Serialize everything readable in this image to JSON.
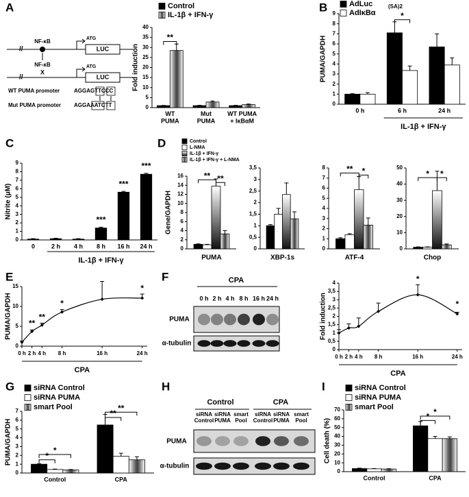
{
  "panel_labels": [
    "A",
    "B",
    "C",
    "D",
    "E",
    "F",
    "G",
    "H",
    "I"
  ],
  "promoter_diagram": {
    "break_mark": "//",
    "nfkb_top": "NF-κB",
    "atg_top": "ATG",
    "luc_top": "LUC",
    "nfkb_bottom": "NF-κB",
    "x_mark": "X",
    "atg_bottom": "ATG",
    "luc_bottom": "LUC",
    "wt_label": "WT PUMA promoter",
    "wt_seq": "AGGAGTTCCC",
    "mut_label": "Mut PUMA promoter",
    "mut_seq": "AGGAAATCTT"
  },
  "blot_f": {
    "group": "CPA",
    "lanes": [
      "0 h",
      "2 h",
      "4 h",
      "8 h",
      "16 h",
      "24 h"
    ],
    "rows": [
      "PUMA",
      "α-tubulin"
    ]
  },
  "blot_h": {
    "groups": [
      "Control",
      "CPA"
    ],
    "lanes": [
      "siRNA\nControl",
      "siRNA\nPUMA",
      "smart\nPool",
      "siRNA\nControl",
      "siRNA\nPUMA",
      "smart\nPool"
    ],
    "rows": [
      "PUMA",
      "α-tubulin"
    ]
  },
  "chart_data": [
    {
      "type": "bar",
      "y_label": "Fold induction",
      "categories": [
        "WT\nPUMA",
        "Mut\nPUMA",
        "WT PUMA\n+ IκBαM"
      ],
      "series": [
        {
          "name": "Control",
          "color": "#000000",
          "values": [
            1,
            1,
            1
          ],
          "errors": [
            0.1,
            0.15,
            0.15
          ]
        },
        {
          "name": "IL-1β + IFN-γ",
          "color": "gradient-horizontal",
          "values": [
            28.5,
            2.8,
            1.5
          ],
          "errors": [
            3.2,
            0.5,
            0.3
          ]
        }
      ],
      "ylim": [
        0,
        40
      ],
      "yticks": [
        0,
        5,
        10,
        15,
        20,
        25,
        30,
        35,
        40
      ],
      "annotations": [
        "**"
      ]
    },
    {
      "type": "bar",
      "y_label": "PUMA/GAPDH",
      "categories": [
        "0 h",
        "6 h",
        "24 h"
      ],
      "series": [
        {
          "name": "AdLuc",
          "color": "#000000",
          "values": [
            1,
            7.1,
            5.7
          ],
          "errors": [
            0.05,
            1.1,
            1.3
          ]
        },
        {
          "name": "AdIκBα",
          "color": "#ffffff",
          "values": [
            1,
            3.35,
            3.9
          ],
          "errors": [
            0.15,
            0.45,
            0.7
          ]
        }
      ],
      "legend_subscript": "(SA)2",
      "ylim": [
        0,
        9
      ],
      "yticks": [
        0,
        1,
        2,
        3,
        4,
        5,
        6,
        7,
        8,
        9
      ],
      "group_label": "IL-1β + IFN-γ",
      "annotations": [
        "*"
      ]
    },
    {
      "type": "bar",
      "y_label": "Nitrite (μM)",
      "categories": [
        "0",
        "2 h",
        "4 h",
        "8 h",
        "16 h",
        "24 h"
      ],
      "values": [
        0.1,
        0.15,
        0.1,
        1.4,
        5.6,
        7.7
      ],
      "errors": [
        0.05,
        0.05,
        0.05,
        0.1,
        0.1,
        0.1
      ],
      "color": "#000000",
      "ylim": [
        0,
        9
      ],
      "yticks": [
        0,
        1,
        2,
        3,
        4,
        5,
        6,
        7,
        8,
        9
      ],
      "group_label": "IL-1β + IFN-γ",
      "annotations": [
        "***",
        "***",
        "***"
      ]
    },
    {
      "type": "bar-panels",
      "y_label": "Gene/GAPDH",
      "categories": [
        "PUMA",
        "XBP-1s",
        "ATF-4",
        "Chop"
      ],
      "series": [
        {
          "name": "Control",
          "color": "#000000",
          "values": [
            1,
            1,
            1,
            1
          ],
          "errors": [
            0.1,
            0.05,
            0.1,
            0.2
          ]
        },
        {
          "name": "L-NMA",
          "color": "#ffffff",
          "values": [
            0.9,
            1.5,
            1.4,
            1
          ],
          "errors": [
            0.1,
            0.25,
            0.1,
            0.2
          ]
        },
        {
          "name": "IL-1β + IFN-γ",
          "color": "gradient-vertical",
          "values": [
            13.8,
            2.35,
            5.85,
            36
          ],
          "errors": [
            1.6,
            0.5,
            1.3,
            12
          ]
        },
        {
          "name": "IL-1β + IFN-γ + L-NMA",
          "color": "gradient-horizontal",
          "values": [
            3.3,
            1.3,
            2.35,
            2.5
          ],
          "errors": [
            0.7,
            0.3,
            0.7,
            0.5
          ]
        }
      ],
      "ylims": [
        [
          0,
          16
        ],
        [
          0,
          3.5
        ],
        [
          0,
          8
        ],
        [
          0,
          50
        ]
      ],
      "yticks": [
        [
          0,
          2,
          4,
          6,
          8,
          10,
          12,
          14,
          16
        ],
        [
          0,
          {
            "value": 0.5,
            "label": "0,5"
          },
          1,
          {
            "value": 1.5,
            "label": "1,5"
          },
          2,
          {
            "value": 2.5,
            "label": "2,5"
          },
          3,
          {
            "value": 3.5,
            "label": "3,5"
          }
        ],
        [
          0,
          1,
          2,
          3,
          4,
          5,
          6,
          7,
          8
        ],
        [
          0,
          10,
          20,
          30,
          40,
          50
        ]
      ],
      "annotations": [
        "**",
        "**",
        "**",
        "*",
        "*",
        "*"
      ]
    },
    {
      "type": "line",
      "y_label": "PUMA/GAPDH",
      "x": [
        0,
        2,
        4,
        8,
        16,
        24
      ],
      "values": [
        1,
        3.7,
        5.3,
        8.6,
        11.8,
        12.1
      ],
      "errors": [
        0.3,
        0.4,
        0.5,
        0.6,
        4.5,
        1
      ],
      "color": "#000000",
      "xlim": [
        0,
        25
      ],
      "xticks": [
        {
          "value": 0,
          "label": "0 h"
        },
        {
          "value": 2,
          "label": "2 h"
        },
        {
          "value": 4,
          "label": "4 h"
        },
        {
          "value": 8,
          "label": "8 h"
        },
        {
          "value": 16,
          "label": "16 h"
        },
        {
          "value": 24,
          "label": "24 h"
        }
      ],
      "ylim": [
        0,
        15
      ],
      "yticks": [
        0,
        5,
        10,
        15
      ],
      "group_label": "CPA",
      "annotations": [
        "**",
        "**",
        "*",
        "*"
      ]
    },
    {
      "type": "line",
      "y_label": "Fold induction",
      "x": [
        0,
        2,
        4,
        8,
        16,
        24
      ],
      "values": [
        1,
        1.3,
        1.4,
        2.3,
        3.3,
        2.15
      ],
      "errors": [
        0.2,
        0.25,
        0.5,
        0.5,
        0.6,
        0.1
      ],
      "color": "#000000",
      "xlim": [
        0,
        25
      ],
      "xticks": [
        {
          "value": 0,
          "label": "0 h"
        },
        {
          "value": 2,
          "label": "2 h"
        },
        {
          "value": 4,
          "label": "4 h"
        },
        {
          "value": 8,
          "label": "8 h"
        },
        {
          "value": 16,
          "label": "16 h"
        },
        {
          "value": 24,
          "label": "24 h"
        }
      ],
      "ylim": [
        0,
        4
      ],
      "yticks": [
        0,
        {
          "value": 0.5,
          "label": "0,5"
        },
        1,
        {
          "value": 1.5,
          "label": "1,5"
        },
        2,
        {
          "value": 2.5,
          "label": "2,5"
        },
        3,
        {
          "value": 3.5,
          "label": "3,5"
        },
        4
      ],
      "group_label": "CPA",
      "annotations": [
        "*",
        "*"
      ]
    },
    {
      "type": "bar",
      "y_label": "PUMA/GAPDH",
      "categories": [
        "Control",
        "CPA"
      ],
      "series": [
        {
          "name": "siRNA Control",
          "color": "#000000",
          "values": [
            1,
            5.45
          ],
          "errors": [
            0.05,
            1.2
          ]
        },
        {
          "name": "siRNA PUMA",
          "color": "#ffffff",
          "values": [
            0.4,
            1.9
          ],
          "errors": [
            0.05,
            0.35
          ]
        },
        {
          "name": "smart Pool",
          "color": "gradient-horizontal",
          "values": [
            0.35,
            1.5
          ],
          "errors": [
            0.05,
            0.35
          ]
        }
      ],
      "ylim": [
        0,
        7
      ],
      "yticks": [
        0,
        1,
        2,
        3,
        4,
        5,
        6,
        7
      ],
      "annotations": [
        "*",
        "*",
        "**",
        "**"
      ]
    },
    {
      "type": "bar",
      "y_label": "Cell death (%)",
      "categories": [
        "Control",
        "CPA"
      ],
      "series": [
        {
          "name": "siRNA Control",
          "color": "#000000",
          "values": [
            3.5,
            52
          ],
          "errors": [
            0.5,
            5
          ]
        },
        {
          "name": "siRNA PUMA",
          "color": "#ffffff",
          "values": [
            3.2,
            37.5
          ],
          "errors": [
            0.3,
            2.5
          ]
        },
        {
          "name": "smart Pool",
          "color": "gradient-horizontal",
          "values": [
            3,
            37.5
          ],
          "errors": [
            0.3,
            2
          ]
        }
      ],
      "ylim": [
        0,
        70
      ],
      "yticks": [
        0,
        10,
        20,
        30,
        40,
        50,
        60,
        70
      ],
      "annotations": [
        "*",
        "*"
      ]
    }
  ]
}
